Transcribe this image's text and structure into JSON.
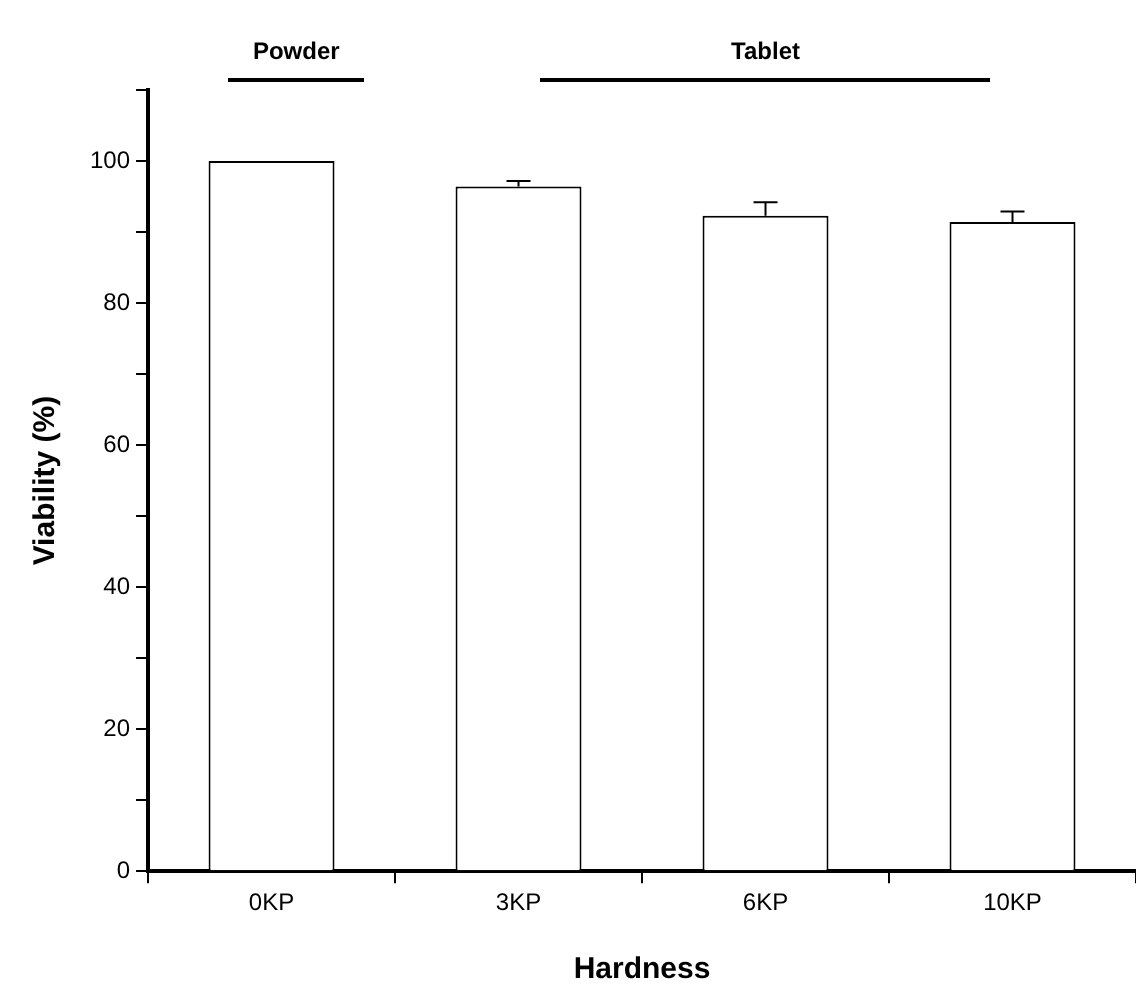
{
  "chart_data": {
    "type": "bar",
    "xlabel": "Hardness",
    "ylabel": "Viability (%)",
    "categories": [
      "0KP",
      "3KP",
      "6KP",
      "10KP"
    ],
    "values": [
      100,
      96.4,
      92.3,
      91.4
    ],
    "errors": [
      null,
      0.8,
      1.9,
      1.5
    ],
    "color": "#ffffff",
    "ylim": [
      0,
      110
    ],
    "yticks": [
      0,
      {
        "value": 10,
        "label": null
      },
      20,
      {
        "value": 30,
        "label": null
      },
      40,
      {
        "value": 50,
        "label": null
      },
      60,
      {
        "value": 70,
        "label": null
      },
      80,
      {
        "value": 90,
        "label": null
      },
      100,
      {
        "value": 110,
        "label": null
      }
    ],
    "annotations": [
      "Powder",
      "Tablet"
    ],
    "grid": false,
    "legend": false
  }
}
